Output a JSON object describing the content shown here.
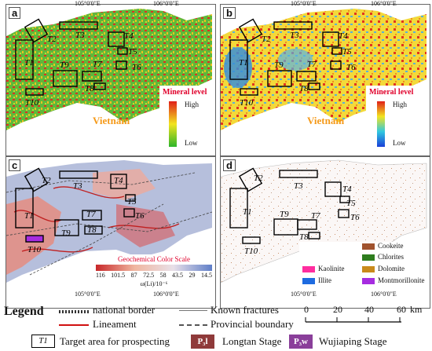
{
  "panels": [
    {
      "label": "a",
      "key": "mineral_high_low",
      "legend_title": "Mineral level",
      "legend_high": "High",
      "legend_low": "Low"
    },
    {
      "label": "b",
      "key": "mineral_high_low_b",
      "legend_title": "Mineral level",
      "legend_high": "High",
      "legend_low": "Low"
    },
    {
      "label": "c",
      "key": "geochem",
      "legend_title": "Geochemical Color Scale",
      "scale_values": [
        "116",
        "101.5",
        "87",
        "72.5",
        "58",
        "43.5",
        "29",
        "14.5"
      ],
      "scale_unit": "ω(Li)/10⁻⁶"
    },
    {
      "label": "d",
      "key": "classes",
      "classes": [
        {
          "name": "Cookeite",
          "color": "#a0522d"
        },
        {
          "name": "Chlorites",
          "color": "#2e7d1e"
        },
        {
          "name": "Kaolinite",
          "color": "#ff2d9f"
        },
        {
          "name": "Dolomite",
          "color": "#c98a1b"
        },
        {
          "name": "Illite",
          "color": "#1e6be0"
        },
        {
          "name": "Montmorillonite",
          "color": "#a62ce0"
        }
      ]
    }
  ],
  "country_label": "Vietnam",
  "lon_ticks": [
    "105°0'0\"E",
    "106°0'0\"E"
  ],
  "lat_ticks": [
    "24°0'0\"N",
    "23°0'0\"N"
  ],
  "targets": [
    "T1",
    "T2",
    "T3",
    "T4",
    "T5",
    "T6",
    "T7",
    "T8",
    "T9",
    "T10"
  ],
  "legend": {
    "title": "Legend",
    "national_border": "national border",
    "known_fractures": "Known fractures",
    "lineament": "Lineament",
    "provincial_boundary": "Provincial boundary",
    "target_symbol": "T1",
    "target_area": "Target area for prospecting",
    "longtan_symbol": "P₃l",
    "longtan": "Longtan Stage",
    "wujiaping_symbol": "P₃w",
    "wujiaping": "Wujiaping Stage",
    "scale_ticks": [
      "0",
      "20",
      "40",
      "60"
    ],
    "scale_unit": "km"
  }
}
